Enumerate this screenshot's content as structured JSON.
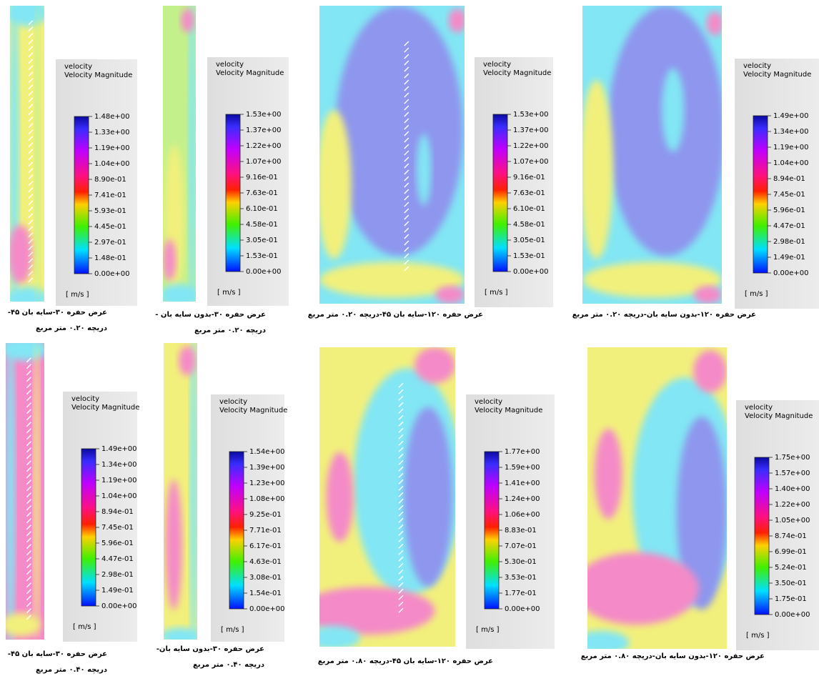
{
  "panels": [
    {
      "legend": {
        "title": "velocity",
        "subtitle": "Velocity Magnitude",
        "ticks": [
          "1.48e+00",
          "1.33e+00",
          "1.19e+00",
          "1.04e+00",
          "8.90e-01",
          "7.41e-01",
          "5.93e-01",
          "4.45e-01",
          "2.97e-01",
          "1.48e-01",
          "0.00e+00"
        ],
        "unit": "[ m/s ]"
      },
      "caption": [
        "عرض حفره ۳۰-سایه بان ۴۵-",
        "دریچه ۰.۲۰ متر مربع"
      ]
    },
    {
      "legend": {
        "title": "velocity",
        "subtitle": "Velocity Magnitude",
        "ticks": [
          "1.53e+00",
          "1.37e+00",
          "1.22e+00",
          "1.07e+00",
          "9.16e-01",
          "7.63e-01",
          "6.10e-01",
          "4.58e-01",
          "3.05e-01",
          "1.53e-01",
          "0.00e+00"
        ],
        "unit": "[ m/s ]"
      },
      "caption": [
        "عرض حفره ۳۰-بدون سایه بان -",
        "دریچه ۰.۲۰ متر مربع"
      ]
    },
    {
      "legend": {
        "title": "velocity",
        "subtitle": "Velocity Magnitude",
        "ticks": [
          "1.53e+00",
          "1.37e+00",
          "1.22e+00",
          "1.07e+00",
          "9.16e-01",
          "7.63e-01",
          "6.10e-01",
          "4.58e-01",
          "3.05e-01",
          "1.53e-01",
          "0.00e+00"
        ],
        "unit": "[ m/s ]"
      },
      "caption": [
        "عرض حفره ۱۲۰-سایه بان ۴۵-دریچه ۰.۲۰ متر مربع"
      ]
    },
    {
      "legend": {
        "title": "velocity",
        "subtitle": "Velocity Magnitude",
        "ticks": [
          "1.49e+00",
          "1.34e+00",
          "1.19e+00",
          "1.04e+00",
          "8.94e-01",
          "7.45e-01",
          "5.96e-01",
          "4.47e-01",
          "2.98e-01",
          "1.49e-01",
          "0.00e+00"
        ],
        "unit": "[ m/s ]"
      },
      "caption": [
        "عرض حفره ۱۲۰-بدون سایه بان-دریچه ۰.۲۰ متر مربع"
      ]
    },
    {
      "legend": {
        "title": "velocity",
        "subtitle": "Velocity Magnitude",
        "ticks": [
          "1.49e+00",
          "1.34e+00",
          "1.19e+00",
          "1.04e+00",
          "8.94e-01",
          "7.45e-01",
          "5.96e-01",
          "4.47e-01",
          "2.98e-01",
          "1.49e-01",
          "0.00e+00"
        ],
        "unit": "[ m/s ]"
      },
      "caption": [
        "عرض حفره ۳۰-سایه بان ۴۵-",
        "دریچه ۰.۴۰ متر مربع"
      ]
    },
    {
      "legend": {
        "title": "velocity",
        "subtitle": "Velocity Magnitude",
        "ticks": [
          "1.54e+00",
          "1.39e+00",
          "1.23e+00",
          "1.08e+00",
          "9.25e-01",
          "7.71e-01",
          "6.17e-01",
          "4.63e-01",
          "3.08e-01",
          "1.54e-01",
          "0.00e+00"
        ],
        "unit": "[ m/s ]"
      },
      "caption": [
        "عرض حفره ۳۰-بدون سایه بان-",
        "دریچه ۰.۴۰ متر مربع"
      ]
    },
    {
      "legend": {
        "title": "velocity",
        "subtitle": "Velocity Magnitude",
        "ticks": [
          "1.77e+00",
          "1.59e+00",
          "1.41e+00",
          "1.24e+00",
          "1.06e+00",
          "8.83e-01",
          "7.07e-01",
          "5.30e-01",
          "3.53e-01",
          "1.77e-01",
          "0.00e+00"
        ],
        "unit": "[ m/s ]"
      },
      "caption": [
        "عرض حفره ۱۲۰-سایه بان ۴۵-دریچه ۰.۸۰ متر مربع"
      ]
    },
    {
      "legend": {
        "title": "velocity",
        "subtitle": "Velocity Magnitude",
        "ticks": [
          "1.75e+00",
          "1.57e+00",
          "1.40e+00",
          "1.22e+00",
          "1.05e+00",
          "8.74e-01",
          "6.99e-01",
          "5.24e-01",
          "3.50e-01",
          "1.75e-01",
          "0.00e+00"
        ],
        "unit": "[ m/s ]"
      },
      "caption": [
        "عرض حفره ۱۲۰-بدون سایه بان-دریچه ۰.۸۰ متر مربع"
      ]
    }
  ]
}
